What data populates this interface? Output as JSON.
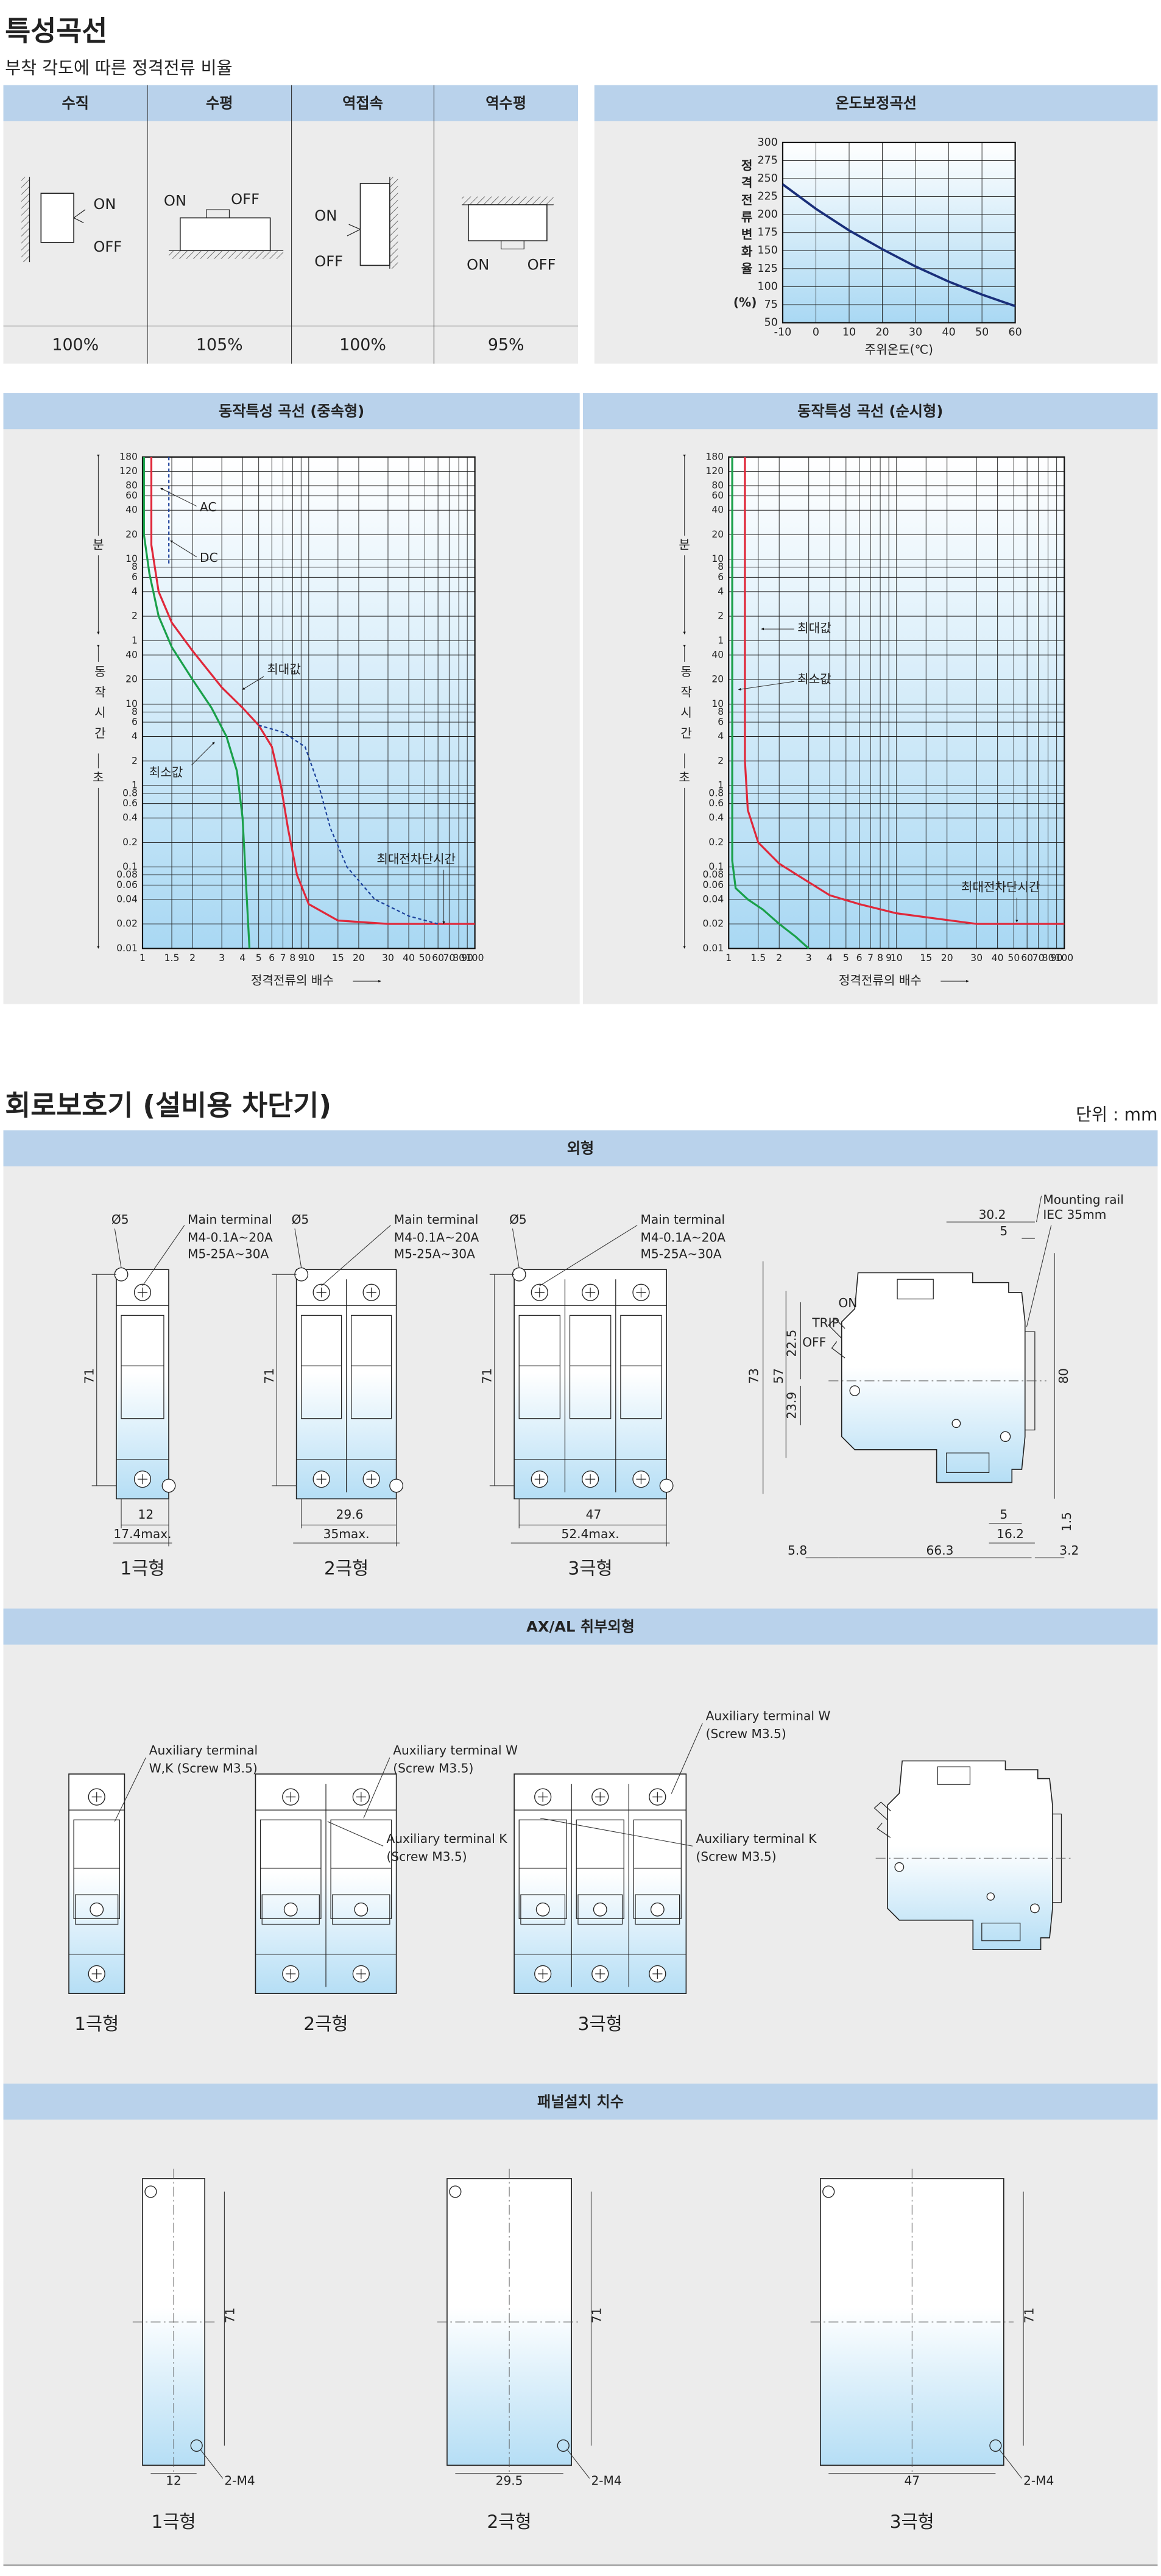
{
  "characteristics": {
    "title": "특성곡선",
    "subtitle": "부착 각도에 따른 정격전류 비율",
    "mounting": {
      "headers": [
        "수직",
        "수평",
        "역접속",
        "역수평"
      ],
      "ratios": [
        "100%",
        "105%",
        "100%",
        "95%"
      ],
      "on": "ON",
      "off": "OFF"
    },
    "temperature": {
      "title": "온도보정곡선",
      "y_label": "정격전류변화율",
      "y_unit": "(%)",
      "yticks": [
        "300",
        "275",
        "250",
        "225",
        "200",
        "175",
        "150",
        "125",
        "100",
        "75",
        "50"
      ],
      "xticks": [
        "-10",
        "0",
        "10",
        "20",
        "30",
        "40",
        "50",
        "60"
      ],
      "x_label": "주위온도(℃)"
    },
    "trip_medium": {
      "title": "동작특성 곡선 (중속형)",
      "minute_label": "분",
      "time_label": "동작시간",
      "second_label": "초",
      "minute_ticks": [
        "180",
        "120",
        "80",
        "60",
        "40",
        "20",
        "10",
        "8",
        "6",
        "4",
        "2",
        "1"
      ],
      "second_ticks": [
        "40",
        "20",
        "10",
        "8",
        "6",
        "4",
        "2",
        "1",
        "0.8",
        "0.6",
        "0.4",
        "0.2",
        "0.1",
        "0.08",
        "0.06",
        "0.04",
        "0.02",
        "0.01"
      ],
      "xticks": [
        "1",
        "1.5",
        "2",
        "3",
        "4",
        "5",
        "6",
        "7",
        "8",
        "9",
        "10",
        "15",
        "20",
        "30",
        "40",
        "50",
        "60",
        "70",
        "80",
        "90",
        "100"
      ],
      "x_label": "정격전류의 배수",
      "annotations": {
        "ac": "AC",
        "dc": "DC",
        "max": "최대값",
        "min": "최소값",
        "break": "최대전차단시간"
      }
    },
    "trip_instant": {
      "title": "동작특성 곡선 (순시형)",
      "minute_label": "분",
      "time_label": "동작시간",
      "second_label": "초",
      "minute_ticks": [
        "180",
        "120",
        "80",
        "60",
        "40",
        "20",
        "10",
        "8",
        "6",
        "4",
        "2",
        "1"
      ],
      "second_ticks": [
        "40",
        "20",
        "10",
        "8",
        "6",
        "4",
        "2",
        "1",
        "0.8",
        "0.6",
        "0.4",
        "0.2",
        "0.1",
        "0.08",
        "0.06",
        "0.04",
        "0.02",
        "0.01"
      ],
      "xticks": [
        "1",
        "1.5",
        "2",
        "3",
        "4",
        "5",
        "6",
        "7",
        "8",
        "9",
        "10",
        "15",
        "20",
        "30",
        "40",
        "50",
        "60",
        "70",
        "80",
        "90",
        "100"
      ],
      "x_label": "정격전류의 배수",
      "annotations": {
        "max": "최대값",
        "min": "최소값",
        "break": "최대전차단시간"
      }
    }
  },
  "breaker": {
    "title": "회로보호기 (설비용 차단기)",
    "unit": "단위 : mm",
    "outline": {
      "title": "외형",
      "diameter": "Ø5",
      "main_terminal": "Main terminal",
      "terminal_spec_1": "M4-0.1A~20A",
      "terminal_spec_2": "M5-25A~30A",
      "height": "71",
      "poles": [
        {
          "label": "1극형",
          "pitch": "12",
          "width": "17.4max."
        },
        {
          "label": "2극형",
          "pitch": "29.6",
          "width": "35max."
        },
        {
          "label": "3극형",
          "pitch": "47",
          "width": "52.4max."
        }
      ],
      "side": {
        "rail_offset": "30.2",
        "rail_gap": "5",
        "rail_label": "Mounting rail",
        "rail_spec": "IEC 35mm",
        "on": "ON",
        "trip": "TRIP",
        "off": "OFF",
        "height_total": "73",
        "height_body": "57",
        "upper": "22.5",
        "lower": "23.9",
        "rail_height": "80",
        "bottom_gap": "5",
        "bottom_depth": "16.2",
        "bottom_lip": "1.5",
        "left": "5.8",
        "depth": "66.3",
        "right": "3.2"
      }
    },
    "accessory": {
      "title": "AX/AL 취부외형",
      "wk_label": [
        "Auxiliary terminal",
        "W,K (Screw M3.5)"
      ],
      "w_label": [
        "Auxiliary terminal W",
        "(Screw M3.5)"
      ],
      "k_label": [
        "Auxiliary terminal K",
        "(Screw M3.5)"
      ],
      "w_label_3p": [
        "Auxiliary terminal W",
        "(Screw M3.5)"
      ],
      "k_label_3p": [
        "Auxiliary terminal K",
        "(Screw M3.5)"
      ],
      "poles": [
        "1극형",
        "2극형",
        "3극형"
      ]
    },
    "panel": {
      "title": "패널설치 치수",
      "height": "71",
      "screw": "2-M4",
      "widths": [
        "12",
        "29.5",
        "47"
      ],
      "poles": [
        "1극형",
        "2극형",
        "3극형"
      ]
    }
  }
}
